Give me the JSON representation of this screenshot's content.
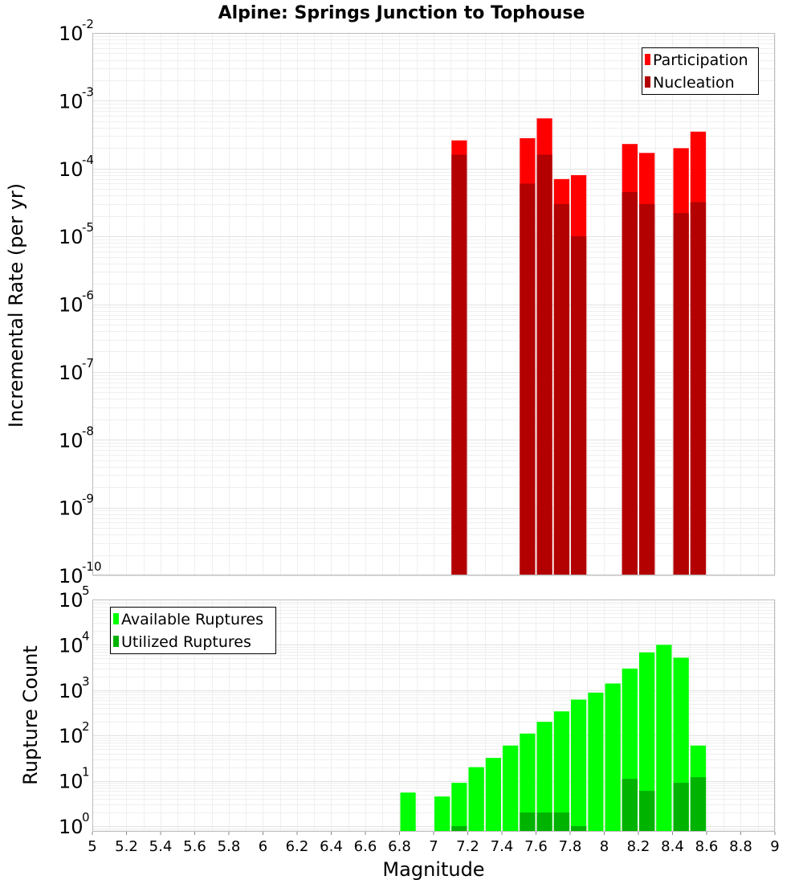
{
  "chart_data": [
    {
      "type": "bar",
      "title": "Alpine: Springs Junction to Tophouse",
      "xlabel": "",
      "ylabel": "Incremental Rate (per yr)",
      "y_scale": "log",
      "ylim": [
        1e-10,
        0.01
      ],
      "xlim": [
        5,
        9
      ],
      "bar_width": 0.1,
      "grid": true,
      "legend_position": "top-right",
      "y_ticks": [
        {
          "base": "10",
          "exp": "-10",
          "value": 1e-10
        },
        {
          "base": "10",
          "exp": "-9",
          "value": 1e-09
        },
        {
          "base": "10",
          "exp": "-8",
          "value": 1e-08
        },
        {
          "base": "10",
          "exp": "-7",
          "value": 1e-07
        },
        {
          "base": "10",
          "exp": "-6",
          "value": 1e-06
        },
        {
          "base": "10",
          "exp": "-5",
          "value": 1e-05
        },
        {
          "base": "10",
          "exp": "-4",
          "value": 0.0001
        },
        {
          "base": "10",
          "exp": "-3",
          "value": 0.001
        },
        {
          "base": "10",
          "exp": "-2",
          "value": 0.01
        }
      ],
      "series": [
        {
          "name": "Participation",
          "color": "#ff0000",
          "points": [
            {
              "x": 7.15,
              "y": 0.00026
            },
            {
              "x": 7.55,
              "y": 0.00028
            },
            {
              "x": 7.65,
              "y": 0.00055
            },
            {
              "x": 7.75,
              "y": 7e-05
            },
            {
              "x": 7.85,
              "y": 8e-05
            },
            {
              "x": 8.15,
              "y": 0.00023
            },
            {
              "x": 8.25,
              "y": 0.00017
            },
            {
              "x": 8.45,
              "y": 0.0002
            },
            {
              "x": 8.55,
              "y": 0.00035
            }
          ]
        },
        {
          "name": "Nucleation",
          "color": "#b30000",
          "points": [
            {
              "x": 7.15,
              "y": 0.00016
            },
            {
              "x": 7.55,
              "y": 6e-05
            },
            {
              "x": 7.65,
              "y": 0.00016
            },
            {
              "x": 7.75,
              "y": 3e-05
            },
            {
              "x": 7.85,
              "y": 1e-05
            },
            {
              "x": 8.15,
              "y": 4.5e-05
            },
            {
              "x": 8.25,
              "y": 3e-05
            },
            {
              "x": 8.45,
              "y": 2.2e-05
            },
            {
              "x": 8.55,
              "y": 3.2e-05
            }
          ]
        }
      ]
    },
    {
      "type": "bar",
      "title": "",
      "xlabel": "Magnitude",
      "ylabel": "Rupture Count",
      "y_scale": "log",
      "ylim": [
        0.75,
        100000
      ],
      "xlim": [
        5,
        9
      ],
      "bar_width": 0.1,
      "grid": true,
      "legend_position": "top-left",
      "x_ticks": [
        "5",
        "5.2",
        "5.4",
        "5.6",
        "5.8",
        "6",
        "6.2",
        "6.4",
        "6.6",
        "6.8",
        "7",
        "7.2",
        "7.4",
        "7.6",
        "7.8",
        "8",
        "8.2",
        "8.4",
        "8.6",
        "8.8",
        "9"
      ],
      "y_ticks": [
        {
          "base": "10",
          "exp": "0",
          "value": 1
        },
        {
          "base": "10",
          "exp": "1",
          "value": 10
        },
        {
          "base": "10",
          "exp": "2",
          "value": 100
        },
        {
          "base": "10",
          "exp": "3",
          "value": 1000
        },
        {
          "base": "10",
          "exp": "4",
          "value": 10000
        },
        {
          "base": "10",
          "exp": "5",
          "value": 100000
        }
      ],
      "series": [
        {
          "name": "Available Ruptures",
          "color": "#00ff00",
          "points": [
            {
              "x": 6.85,
              "y": 5.5
            },
            {
              "x": 7.05,
              "y": 4.5
            },
            {
              "x": 7.15,
              "y": 9
            },
            {
              "x": 7.25,
              "y": 20
            },
            {
              "x": 7.35,
              "y": 32
            },
            {
              "x": 7.45,
              "y": 60
            },
            {
              "x": 7.55,
              "y": 110
            },
            {
              "x": 7.65,
              "y": 200
            },
            {
              "x": 7.75,
              "y": 340
            },
            {
              "x": 7.85,
              "y": 620
            },
            {
              "x": 7.95,
              "y": 880
            },
            {
              "x": 8.05,
              "y": 1400
            },
            {
              "x": 8.15,
              "y": 3000
            },
            {
              "x": 8.25,
              "y": 6800
            },
            {
              "x": 8.35,
              "y": 10000
            },
            {
              "x": 8.45,
              "y": 5200
            },
            {
              "x": 8.55,
              "y": 60
            }
          ]
        },
        {
          "name": "Utilized Ruptures",
          "color": "#00b300",
          "points": [
            {
              "x": 7.15,
              "y": 1
            },
            {
              "x": 7.55,
              "y": 2
            },
            {
              "x": 7.65,
              "y": 2
            },
            {
              "x": 7.75,
              "y": 2
            },
            {
              "x": 7.85,
              "y": 1
            },
            {
              "x": 8.15,
              "y": 11
            },
            {
              "x": 8.25,
              "y": 6
            },
            {
              "x": 8.45,
              "y": 9
            },
            {
              "x": 8.55,
              "y": 12
            }
          ]
        }
      ]
    }
  ]
}
